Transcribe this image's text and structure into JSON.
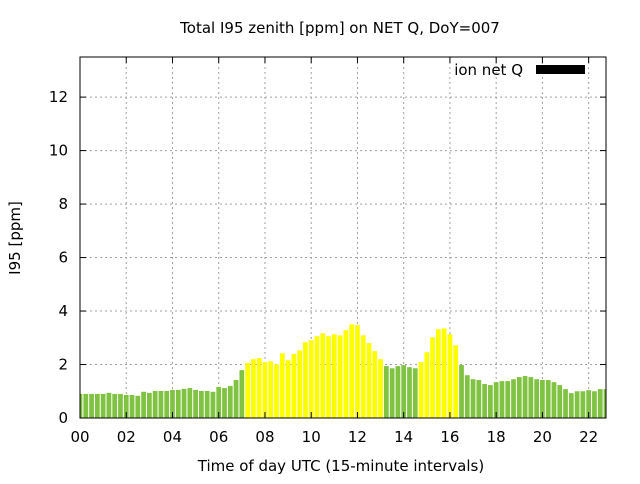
{
  "chart_data": {
    "type": "bar",
    "title": "Total I95 zenith [ppm] on NET Q, DoY=007",
    "xlabel": "Time of day UTC (15-minute intervals)",
    "ylabel": "I95 [ppm]",
    "xlim": [
      0,
      22.75
    ],
    "ylim": [
      0,
      13.5
    ],
    "grid": true,
    "legend": {
      "position": "top-right",
      "entries": [
        {
          "label": "ion net Q",
          "color": "#000000"
        }
      ]
    },
    "x_ticks": [
      "00",
      "02",
      "04",
      "06",
      "08",
      "10",
      "12",
      "14",
      "16",
      "18",
      "20",
      "22"
    ],
    "x_tick_values": [
      0,
      2,
      4,
      6,
      8,
      10,
      12,
      14,
      16,
      18,
      20,
      22
    ],
    "y_ticks": [
      "0",
      "2",
      "4",
      "6",
      "8",
      "10",
      "12"
    ],
    "y_tick_values": [
      0,
      2,
      4,
      6,
      8,
      10,
      12
    ],
    "bar_interval_hours": 0.25,
    "colors": {
      "normal": "#80c342",
      "elevated": "#ffff00",
      "threshold": 2.0
    },
    "values": [
      0.9,
      0.9,
      0.9,
      0.9,
      0.9,
      0.94,
      0.9,
      0.9,
      0.86,
      0.86,
      0.83,
      0.98,
      0.94,
      1.01,
      1.01,
      1.01,
      1.05,
      1.05,
      1.09,
      1.12,
      1.05,
      1.01,
      1.01,
      0.98,
      1.16,
      1.12,
      1.2,
      1.42,
      1.79,
      2.06,
      2.2,
      2.24,
      2.09,
      2.12,
      2.01,
      2.42,
      2.16,
      2.39,
      2.53,
      2.83,
      2.91,
      3.06,
      3.17,
      3.06,
      3.13,
      3.09,
      3.28,
      3.5,
      3.47,
      3.09,
      2.8,
      2.5,
      2.2,
      1.94,
      1.86,
      1.94,
      1.98,
      1.9,
      1.86,
      2.09,
      2.46,
      3.02,
      3.32,
      3.35,
      3.13,
      2.72,
      1.98,
      1.6,
      1.45,
      1.42,
      1.27,
      1.23,
      1.34,
      1.38,
      1.38,
      1.45,
      1.53,
      1.57,
      1.53,
      1.45,
      1.42,
      1.42,
      1.34,
      1.23,
      1.08,
      0.93,
      1.0,
      1.0,
      1.04,
      1.0,
      1.08,
      1.08
    ],
    "elevated_flags": [
      0,
      0,
      0,
      0,
      0,
      0,
      0,
      0,
      0,
      0,
      0,
      0,
      0,
      0,
      0,
      0,
      0,
      0,
      0,
      0,
      0,
      0,
      0,
      0,
      0,
      0,
      0,
      0,
      0,
      1,
      1,
      1,
      1,
      1,
      1,
      1,
      1,
      1,
      1,
      1,
      1,
      1,
      1,
      1,
      1,
      1,
      1,
      1,
      1,
      1,
      1,
      1,
      1,
      0,
      0,
      0,
      0,
      0,
      0,
      1,
      1,
      1,
      1,
      1,
      1,
      1,
      0,
      0,
      0,
      0,
      0,
      0,
      0,
      0,
      0,
      0,
      0,
      0,
      0,
      0,
      0,
      0,
      0,
      0,
      0,
      0,
      0,
      0,
      0,
      0,
      0,
      0
    ]
  }
}
